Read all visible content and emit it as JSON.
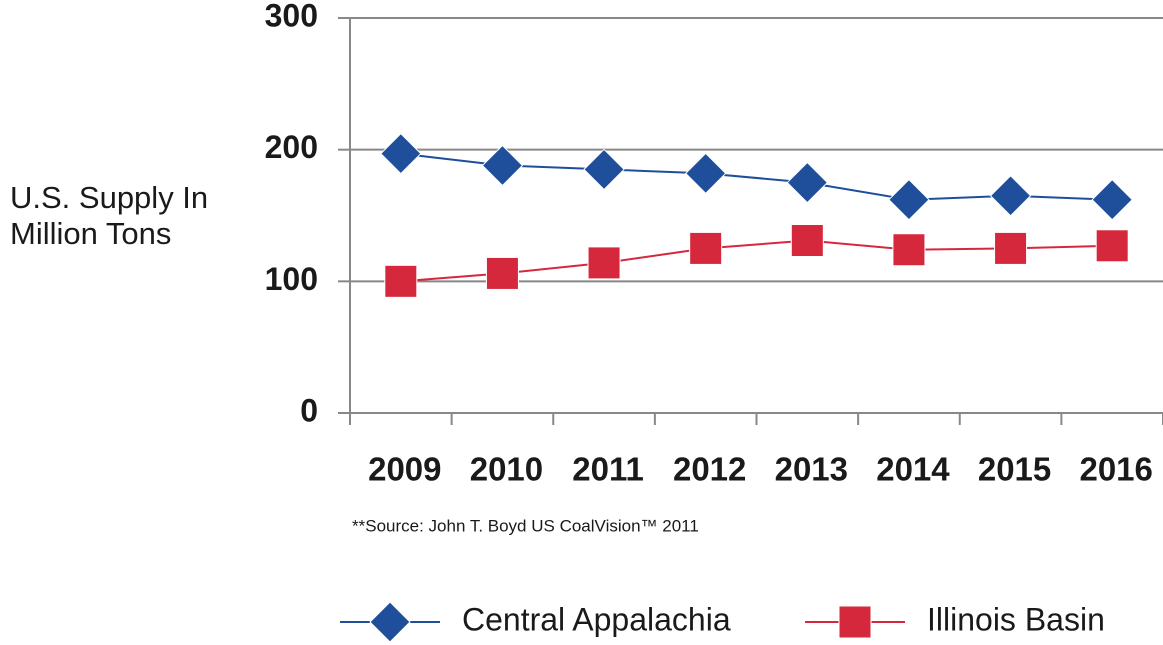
{
  "chart_data": {
    "type": "line",
    "y_label": "U.S. Supply In Million Tons",
    "source": "**Source: John T. Boyd US CoalVision™ 2011",
    "categories": [
      "2009",
      "2010",
      "2011",
      "2012",
      "2013",
      "2014",
      "2015",
      "2016"
    ],
    "series": [
      {
        "name": "Central Appalachia",
        "color": "#1f4e9a",
        "marker": "diamond",
        "values": [
          197,
          188,
          185,
          182,
          175,
          162,
          165,
          162
        ]
      },
      {
        "name": "Illinois Basin",
        "color": "#d6283c",
        "marker": "square",
        "values": [
          100,
          106,
          114,
          125,
          131,
          124,
          125,
          127
        ]
      }
    ],
    "ylim": [
      0,
      300
    ],
    "yticks": [
      0,
      100,
      200,
      300
    ],
    "grid": true,
    "legend": "bottom"
  }
}
